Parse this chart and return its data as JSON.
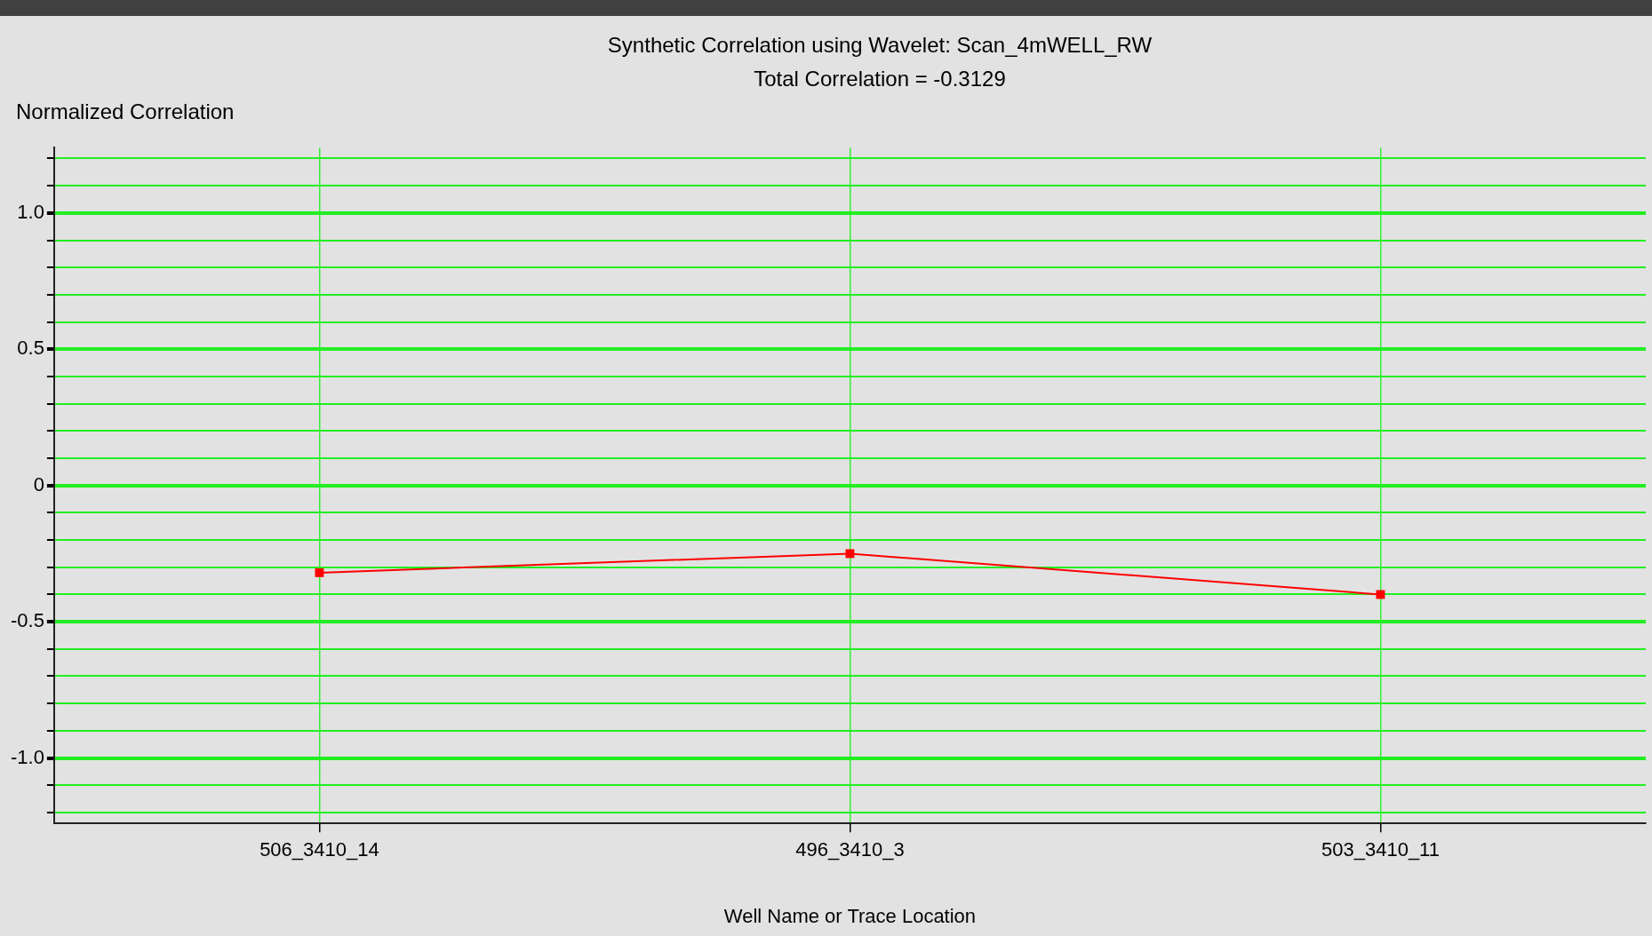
{
  "chart_data": {
    "type": "line",
    "title": "Synthetic Correlation using Wavelet: Scan_4mWELL_RW",
    "subtitle": "Total Correlation = -0.3129",
    "ylabel": "Normalized Correlation",
    "xlabel": "Well Name or Trace Location",
    "categories": [
      "506_3410_14",
      "496_3410_3",
      "503_3410_11"
    ],
    "series": [
      {
        "color": "#ff0000",
        "values": [
          -0.32,
          -0.25,
          -0.4
        ]
      }
    ],
    "ylim": [
      -1.24,
      1.24
    ],
    "yticks": [
      {
        "value": -1.2,
        "label": null
      },
      {
        "value": -1.1,
        "label": null
      },
      {
        "value": -1.0,
        "label": "-1.0"
      },
      {
        "value": -0.9,
        "label": null
      },
      {
        "value": -0.8,
        "label": null
      },
      {
        "value": -0.7,
        "label": null
      },
      {
        "value": -0.6,
        "label": null
      },
      -0.5,
      {
        "value": -0.4,
        "label": null
      },
      {
        "value": -0.3,
        "label": null
      },
      {
        "value": -0.2,
        "label": null
      },
      {
        "value": -0.1,
        "label": null
      },
      0,
      {
        "value": 0.1,
        "label": null
      },
      {
        "value": 0.2,
        "label": null
      },
      {
        "value": 0.3,
        "label": null
      },
      {
        "value": 0.4,
        "label": null
      },
      0.5,
      {
        "value": 0.6,
        "label": null
      },
      {
        "value": 0.7,
        "label": null
      },
      {
        "value": 0.8,
        "label": null
      },
      {
        "value": 0.9,
        "label": null
      },
      {
        "value": 1.0,
        "label": "1.0"
      },
      {
        "value": 1.1,
        "label": null
      },
      {
        "value": 1.2,
        "label": null
      }
    ],
    "grid": true,
    "legend": false,
    "marker": "square",
    "line_style": "solid"
  }
}
